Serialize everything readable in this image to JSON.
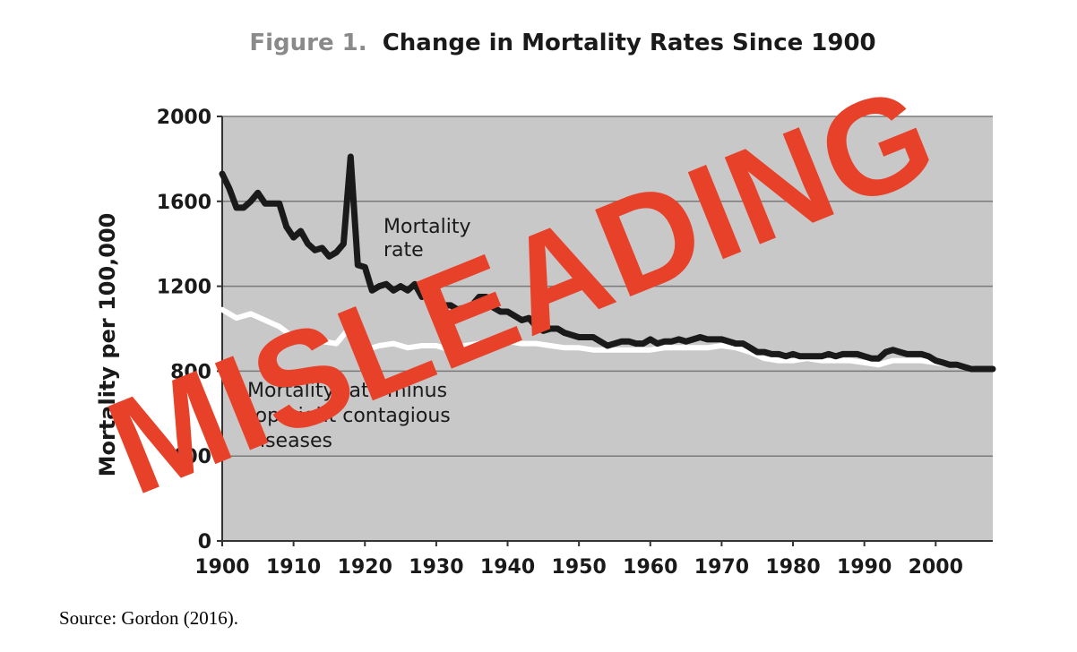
{
  "chart_data": {
    "type": "line",
    "title_prefix": "Figure 1.",
    "title": "Change in Mortality Rates Since 1900",
    "xlabel": "",
    "ylabel": "Mortality per 100,000",
    "xlim": [
      1900,
      2008
    ],
    "ylim": [
      0,
      2000
    ],
    "x_ticks": [
      "1900",
      "1910",
      "1920",
      "1930",
      "1940",
      "1950",
      "1960",
      "1970",
      "1980",
      "1990",
      "2000"
    ],
    "y_ticks": [
      "0",
      "400",
      "800",
      "1200",
      "1600",
      "2000"
    ],
    "grid": true,
    "series": [
      {
        "name": "Mortality rate",
        "color": "#1a1a1a",
        "x": [
          1900,
          1901,
          1902,
          1903,
          1904,
          1905,
          1906,
          1907,
          1908,
          1909,
          1910,
          1911,
          1912,
          1913,
          1914,
          1915,
          1916,
          1917,
          1918,
          1919,
          1920,
          1921,
          1922,
          1923,
          1924,
          1925,
          1926,
          1927,
          1928,
          1929,
          1930,
          1931,
          1932,
          1933,
          1934,
          1935,
          1936,
          1937,
          1938,
          1939,
          1940,
          1941,
          1942,
          1943,
          1944,
          1945,
          1946,
          1947,
          1948,
          1949,
          1950,
          1951,
          1952,
          1953,
          1954,
          1955,
          1956,
          1957,
          1958,
          1959,
          1960,
          1961,
          1962,
          1963,
          1964,
          1965,
          1966,
          1967,
          1968,
          1969,
          1970,
          1971,
          1972,
          1973,
          1974,
          1975,
          1976,
          1977,
          1978,
          1979,
          1980,
          1981,
          1982,
          1983,
          1984,
          1985,
          1986,
          1987,
          1988,
          1989,
          1990,
          1991,
          1992,
          1993,
          1994,
          1995,
          1996,
          1997,
          1998,
          1999,
          2000,
          2001,
          2002,
          2003,
          2004,
          2005,
          2006,
          2007,
          2008
        ],
        "values": [
          1730,
          1660,
          1570,
          1570,
          1600,
          1640,
          1590,
          1590,
          1590,
          1480,
          1430,
          1460,
          1400,
          1370,
          1380,
          1340,
          1360,
          1400,
          1810,
          1300,
          1290,
          1180,
          1200,
          1210,
          1180,
          1200,
          1180,
          1210,
          1150,
          1200,
          1120,
          1110,
          1110,
          1090,
          1100,
          1110,
          1150,
          1150,
          1100,
          1080,
          1080,
          1060,
          1040,
          1050,
          1010,
          990,
          1000,
          1000,
          980,
          970,
          960,
          960,
          960,
          940,
          920,
          930,
          940,
          940,
          930,
          930,
          950,
          930,
          940,
          940,
          950,
          940,
          950,
          960,
          950,
          950,
          950,
          940,
          930,
          930,
          910,
          890,
          890,
          880,
          880,
          870,
          880,
          870,
          870,
          870,
          870,
          880,
          870,
          880,
          880,
          880,
          870,
          860,
          860,
          890,
          900,
          890,
          880,
          880,
          880,
          870,
          850,
          840,
          830,
          830,
          820,
          810,
          810,
          810,
          810
        ]
      },
      {
        "name": "Mortality rate minus top eight contagious diseases",
        "color": "#ffffff",
        "x": [
          1900,
          1902,
          1904,
          1906,
          1908,
          1910,
          1912,
          1914,
          1916,
          1918,
          1920,
          1922,
          1924,
          1926,
          1928,
          1930,
          1932,
          1934,
          1936,
          1938,
          1940,
          1942,
          1944,
          1946,
          1948,
          1950,
          1952,
          1954,
          1956,
          1958,
          1960,
          1962,
          1964,
          1966,
          1968,
          1970,
          1972,
          1974,
          1976,
          1978,
          1980,
          1982,
          1984,
          1986,
          1988,
          1990,
          1992,
          1994,
          1996,
          1998,
          2000,
          2002,
          2004,
          2006,
          2008
        ],
        "values": [
          1090,
          1050,
          1070,
          1040,
          1010,
          960,
          950,
          940,
          930,
          1010,
          900,
          920,
          930,
          910,
          920,
          920,
          900,
          920,
          930,
          920,
          940,
          930,
          930,
          920,
          910,
          910,
          900,
          900,
          900,
          900,
          900,
          910,
          910,
          910,
          910,
          920,
          910,
          890,
          860,
          850,
          850,
          860,
          850,
          850,
          850,
          840,
          830,
          850,
          850,
          850,
          840,
          830,
          820,
          810,
          810
        ]
      }
    ],
    "annotations": [
      {
        "text": "Mortality",
        "lines": [
          "Mortality",
          "rate"
        ]
      },
      {
        "text": "Mortality rate minus top eight contagious diseases",
        "lines": [
          "Mortality rate minus",
          "top eight contagious",
          "diseases"
        ]
      }
    ]
  },
  "stamp": {
    "text": "MISLEADING",
    "color": "#e8412a"
  },
  "source": "Source: Gordon (2016)."
}
